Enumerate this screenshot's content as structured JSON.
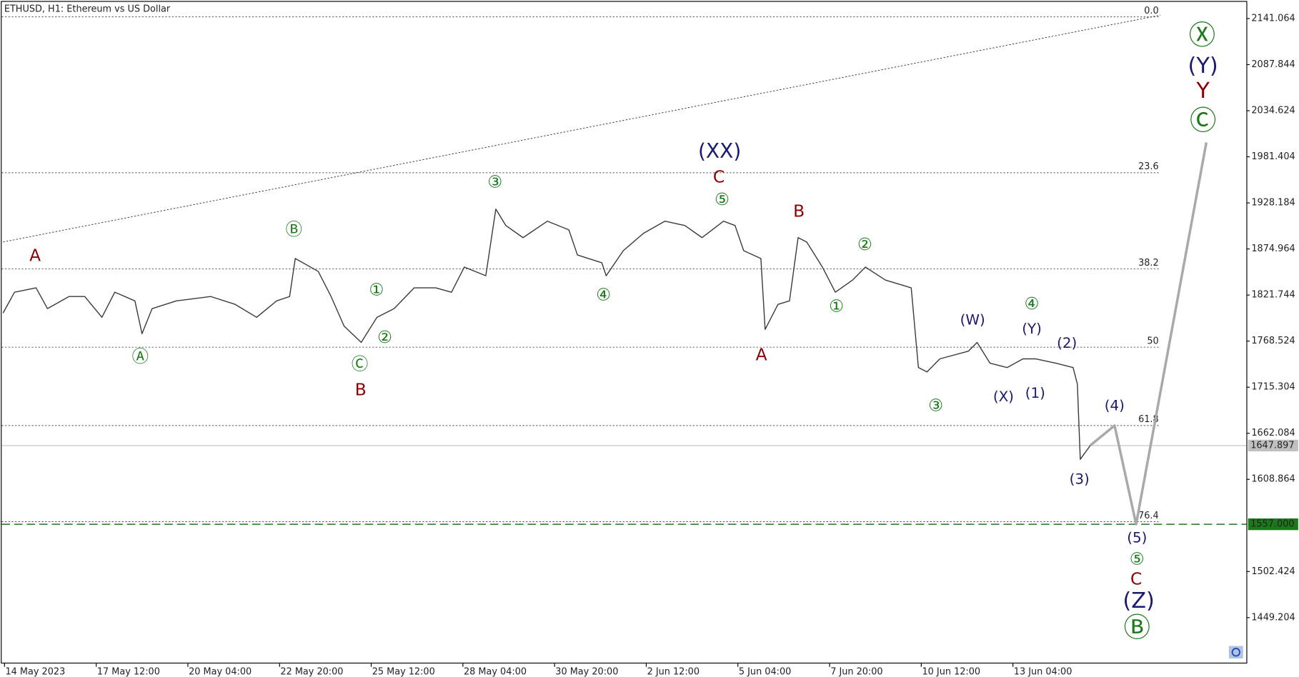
{
  "chart_data": {
    "type": "line",
    "title": "ETHUSD, H1:  Ethereum vs US Dollar",
    "xlim": [
      18,
      887
    ],
    "ylim": [
      2162.3,
      1396.2
    ],
    "xticks": [
      {
        "value": 20,
        "label": "14 May 2023"
      },
      {
        "value": 84,
        "label": "17 May 12:00"
      },
      {
        "value": 148,
        "label": "20 May 04:00"
      },
      {
        "value": 212,
        "label": "22 May 20:00"
      },
      {
        "value": 276,
        "label": "25 May 12:00"
      },
      {
        "value": 340,
        "label": "28 May 04:00"
      },
      {
        "value": 404,
        "label": "30 May 20:00"
      },
      {
        "value": 468,
        "label": "2 Jun 12:00"
      },
      {
        "value": 532,
        "label": "5 Jun 04:00"
      },
      {
        "value": 596,
        "label": "7 Jun 20:00"
      },
      {
        "value": 660,
        "label": "10 Jun 12:00"
      },
      {
        "value": 724,
        "label": "13 Jun 04:00"
      }
    ],
    "yticks": [
      2141.064,
      2087.844,
      2034.624,
      1981.404,
      1928.184,
      1874.964,
      1821.744,
      1768.524,
      1715.304,
      1662.084,
      1608.864,
      1502.424,
      1449.204
    ],
    "series": [
      {
        "color": "#3a3a3a",
        "x": [
          19,
          27,
          42,
          50,
          65,
          76,
          88,
          97,
          111,
          116,
          123,
          140,
          164,
          181,
          196,
          210,
          219,
          223,
          239,
          248,
          257,
          269,
          280,
          292,
          306,
          321,
          332,
          341,
          356,
          363,
          370,
          382,
          399,
          414,
          420,
          437,
          440,
          452,
          466,
          481,
          495,
          507,
          522,
          530,
          536,
          548,
          551,
          560,
          568,
          574,
          580,
          591,
          600,
          612,
          621,
          635,
          653,
          658,
          664,
          673,
          693,
          699,
          708,
          720,
          731,
          740,
          754,
          766,
          769,
          771,
          778
        ],
        "values": [
          1801,
          1825,
          1830,
          1806,
          1820,
          1820,
          1796,
          1825,
          1815,
          1777,
          1806,
          1815,
          1820,
          1811,
          1796,
          1815,
          1820,
          1864,
          1849,
          1820,
          1786,
          1767,
          1796,
          1806,
          1830,
          1830,
          1825,
          1854,
          1844,
          1921,
          1902,
          1888,
          1907,
          1897,
          1868,
          1859,
          1844,
          1873,
          1893,
          1907,
          1902,
          1888,
          1907,
          1902,
          1873,
          1864,
          1782,
          1811,
          1815,
          1888,
          1883,
          1854,
          1825,
          1839,
          1854,
          1839,
          1830,
          1738,
          1733,
          1748,
          1757,
          1767,
          1743,
          1738,
          1748,
          1748,
          1743,
          1738,
          1719,
          1632,
          1648
        ]
      },
      {
        "color": "#a9a9a9",
        "x": [
          778,
          795,
          810,
          859
        ],
        "values": [
          1648,
          1671,
          1557,
          1998
        ]
      }
    ],
    "trendline": {
      "x": [
        19,
        827
      ],
      "values": [
        1883,
        2145
      ]
    },
    "fib_levels": [
      {
        "label": "0.0",
        "value": 2143
      },
      {
        "label": "23.6",
        "value": 1963
      },
      {
        "label": "38.2",
        "value": 1852
      },
      {
        "label": "50",
        "value": 1761.5
      },
      {
        "label": "61.8",
        "value": 1671
      },
      {
        "label": "76.4",
        "value": 1560
      }
    ],
    "price_lines": [
      {
        "value": 1647.897,
        "label": "1647.897",
        "color": "#c0c0c0"
      },
      {
        "value": 1557,
        "label": "1557.000",
        "color": "#1a7a1a"
      }
    ],
    "annotations": [
      {
        "text": "A",
        "color": "#8b0000"
      },
      {
        "text": "B",
        "color": "#8b0000"
      },
      {
        "text": "C",
        "color": "#8b0000"
      },
      {
        "text": "A",
        "color": "#8b0000"
      },
      {
        "text": "B",
        "color": "#8b0000"
      },
      {
        "text": "C",
        "color": "#8b0000"
      },
      {
        "text": "Y",
        "color": "#8b0000"
      },
      {
        "text": "(XX)",
        "color": "#1a1a6e"
      },
      {
        "text": "(W)",
        "color": "#1a1a6e"
      },
      {
        "text": "(X)",
        "color": "#1a1a6e"
      },
      {
        "text": "(Y)",
        "color": "#1a1a6e"
      },
      {
        "text": "(1)",
        "color": "#1a1a6e"
      },
      {
        "text": "(2)",
        "color": "#1a1a6e"
      },
      {
        "text": "(3)",
        "color": "#1a1a6e"
      },
      {
        "text": "(4)",
        "color": "#1a1a6e"
      },
      {
        "text": "(5)",
        "color": "#1a1a6e"
      },
      {
        "text": "(Z)",
        "color": "#1a1a6e"
      },
      {
        "text": "(Y)",
        "color": "#1a1a6e"
      },
      {
        "text": "Ⓐ",
        "color": "#1a7a1a"
      },
      {
        "text": "Ⓑ",
        "color": "#1a7a1a"
      },
      {
        "text": "Ⓒ",
        "color": "#1a7a1a"
      },
      {
        "text": "①",
        "color": "#1a7a1a"
      },
      {
        "text": "②",
        "color": "#1a7a1a"
      },
      {
        "text": "③",
        "color": "#1a7a1a"
      },
      {
        "text": "④",
        "color": "#1a7a1a"
      },
      {
        "text": "⑤",
        "color": "#1a7a1a"
      },
      {
        "text": "①",
        "color": "#1a7a1a"
      },
      {
        "text": "②",
        "color": "#1a7a1a"
      },
      {
        "text": "③",
        "color": "#1a7a1a"
      },
      {
        "text": "④",
        "color": "#1a7a1a"
      },
      {
        "text": "⑤",
        "color": "#1a7a1a"
      },
      {
        "text": "Ⓑ",
        "color": "#1a7a1a"
      },
      {
        "text": "Ⓧ",
        "color": "#1a7a1a"
      },
      {
        "text": "Ⓒ",
        "color": "#1a7a1a"
      }
    ]
  }
}
